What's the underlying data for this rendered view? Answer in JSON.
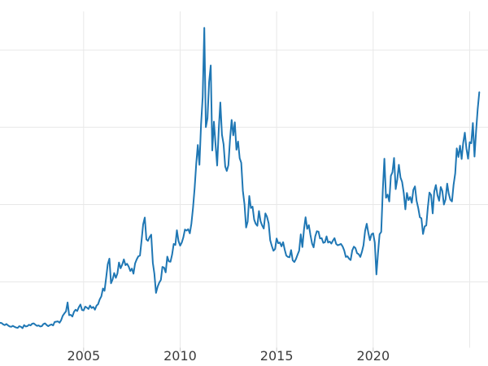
{
  "colors": {
    "background": "#ffffff",
    "grid": "#e8e8e8",
    "tick": "#c9c9c9",
    "label": "#3c3c3c",
    "line": "#1f77b4"
  },
  "chart_data": {
    "type": "line",
    "title": "",
    "series_name": "price-series",
    "line_color": "#1f77b4",
    "legend": "none",
    "grid": "on",
    "x_start_year": 2000.6667,
    "x_step_years": 0.0833333,
    "xlim": [
      2000.6667,
      2025.95
    ],
    "ylim": [
      1.3,
      50.4
    ],
    "x_tick_years": [
      2005,
      2010,
      2015,
      2020
    ],
    "x_tick_labels": [
      "2005",
      "2010",
      "2015",
      "2020"
    ],
    "x_gridline_years": [
      2005,
      2010,
      2015,
      2020,
      2025
    ],
    "y_gridline_values": [
      10.9,
      22.2,
      33.5,
      44.75
    ],
    "values": [
      4.95,
      4.9,
      4.7,
      4.6,
      4.75,
      4.55,
      4.4,
      4.35,
      4.5,
      4.35,
      4.25,
      4.2,
      4.45,
      4.35,
      4.15,
      4.6,
      4.4,
      4.45,
      4.65,
      4.55,
      4.8,
      4.85,
      4.65,
      4.5,
      4.55,
      4.4,
      4.45,
      4.75,
      4.85,
      4.6,
      4.45,
      4.6,
      4.7,
      4.55,
      5.05,
      5.1,
      5.15,
      4.95,
      5.3,
      5.95,
      6.3,
      6.6,
      7.9,
      6.05,
      6.1,
      5.85,
      6.55,
      6.85,
      6.65,
      7.2,
      7.6,
      6.8,
      6.75,
      7.3,
      7.15,
      6.95,
      7.45,
      7.1,
      7.25,
      6.85,
      7.45,
      7.65,
      8.35,
      8.8,
      9.95,
      9.6,
      11.5,
      13.5,
      14.3,
      10.7,
      11.25,
      12.2,
      11.5,
      12.15,
      13.75,
      12.9,
      13.45,
      14.2,
      13.35,
      13.55,
      13.15,
      12.5,
      12.85,
      12.1,
      13.6,
      14.2,
      14.65,
      14.75,
      16.9,
      19.3,
      20.3,
      17.1,
      16.9,
      17.45,
      17.8,
      13.7,
      12.1,
      9.3,
      10.2,
      10.8,
      11.2,
      13.1,
      13.0,
      12.3,
      14.6,
      13.9,
      13.85,
      14.9,
      16.45,
      16.3,
      18.45,
      16.85,
      16.2,
      16.65,
      17.4,
      18.55,
      18.4,
      18.6,
      18.0,
      19.4,
      21.7,
      24.6,
      28.2,
      30.9,
      28.0,
      33.9,
      37.9,
      48.0,
      33.5,
      34.8,
      40.1,
      42.5,
      30.1,
      34.3,
      31.0,
      27.9,
      33.25,
      37.1,
      32.4,
      31.0,
      27.75,
      27.1,
      27.95,
      31.7,
      34.55,
      32.3,
      34.2,
      30.2,
      31.4,
      28.95,
      28.3,
      24.2,
      22.25,
      18.85,
      19.7,
      23.45,
      21.7,
      21.9,
      20.0,
      19.4,
      19.1,
      21.25,
      19.75,
      19.15,
      18.7,
      20.9,
      20.4,
      19.45,
      17.0,
      16.15,
      15.45,
      15.7,
      17.25,
      16.55,
      16.65,
      16.1,
      16.7,
      15.65,
      14.75,
      14.55,
      14.5,
      15.55,
      14.05,
      13.8,
      14.25,
      14.9,
      15.45,
      17.85,
      16.0,
      18.6,
      20.35,
      18.65,
      19.2,
      17.75,
      16.5,
      15.95,
      17.55,
      18.3,
      18.25,
      17.25,
      17.3,
      16.6,
      16.7,
      17.55,
      16.65,
      16.8,
      16.5,
      16.95,
      17.3,
      16.45,
      16.25,
      16.35,
      16.45,
      16.1,
      15.5,
      14.55,
      14.65,
      14.3,
      14.1,
      15.5,
      16.05,
      15.85,
      15.1,
      14.95,
      14.55,
      15.3,
      16.25,
      18.35,
      19.4,
      18.05,
      17.0,
      17.85,
      18.0,
      16.65,
      12.0,
      15.0,
      17.85,
      18.2,
      24.4,
      28.9,
      23.2,
      23.65,
      22.65,
      26.4,
      26.9,
      29.0,
      24.45,
      25.9,
      28.0,
      26.15,
      25.5,
      23.9,
      21.5,
      23.9,
      22.85,
      23.3,
      22.45,
      24.35,
      24.85,
      22.75,
      21.7,
      20.35,
      20.2,
      17.9,
      19.0,
      19.15,
      21.75,
      23.95,
      23.6,
      20.9,
      24.1,
      25.05,
      23.55,
      22.75,
      24.75,
      24.2,
      22.2,
      22.95,
      25.25,
      23.8,
      22.9,
      22.65,
      25.1,
      26.75,
      30.4,
      29.15,
      30.8,
      28.85,
      31.2,
      32.7,
      30.35,
      28.9,
      31.3,
      31.15,
      34.1,
      29.2,
      32.98,
      36.1,
      38.6
    ]
  }
}
